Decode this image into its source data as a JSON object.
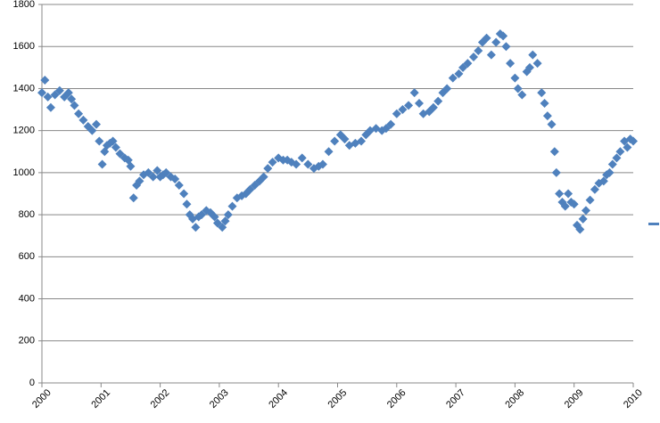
{
  "chart_data": {
    "type": "scatter",
    "x": [
      2000.0,
      2000.05,
      2000.1,
      2000.15,
      2000.22,
      2000.3,
      2000.38,
      2000.45,
      2000.5,
      2000.55,
      2000.62,
      2000.7,
      2000.78,
      2000.85,
      2000.92,
      2000.97,
      2001.02,
      2001.06,
      2001.1,
      2001.15,
      2001.2,
      2001.25,
      2001.32,
      2001.4,
      2001.46,
      2001.5,
      2001.55,
      2001.6,
      2001.65,
      2001.72,
      2001.8,
      2001.88,
      2001.95,
      2002.0,
      2002.05,
      2002.1,
      2002.18,
      2002.25,
      2002.32,
      2002.4,
      2002.45,
      2002.5,
      2002.55,
      2002.6,
      2002.65,
      2002.7,
      2002.78,
      2002.85,
      2002.92,
      2002.97,
      2003.05,
      2003.1,
      2003.15,
      2003.22,
      2003.3,
      2003.38,
      2003.45,
      2003.52,
      2003.6,
      2003.68,
      2003.75,
      2003.82,
      2003.9,
      2004.0,
      2004.08,
      2004.15,
      2004.22,
      2004.3,
      2004.4,
      2004.5,
      2004.6,
      2004.68,
      2004.75,
      2004.85,
      2004.95,
      2005.05,
      2005.12,
      2005.2,
      2005.3,
      2005.4,
      2005.48,
      2005.55,
      2005.65,
      2005.75,
      2005.82,
      2005.9,
      2006.0,
      2006.1,
      2006.2,
      2006.3,
      2006.38,
      2006.45,
      2006.55,
      2006.62,
      2006.7,
      2006.78,
      2006.85,
      2006.95,
      2007.05,
      2007.12,
      2007.2,
      2007.3,
      2007.38,
      2007.45,
      2007.52,
      2007.6,
      2007.68,
      2007.75,
      2007.8,
      2007.85,
      2007.92,
      2008.0,
      2008.05,
      2008.12,
      2008.2,
      2008.25,
      2008.3,
      2008.38,
      2008.45,
      2008.5,
      2008.55,
      2008.62,
      2008.67,
      2008.7,
      2008.75,
      2008.8,
      2008.85,
      2008.9,
      2008.95,
      2009.0,
      2009.05,
      2009.1,
      2009.15,
      2009.2,
      2009.27,
      2009.35,
      2009.42,
      2009.5,
      2009.55,
      2009.6,
      2009.65,
      2009.72,
      2009.78,
      2009.85,
      2009.9,
      2009.95,
      2010.0
    ],
    "values": [
      1380,
      1440,
      1360,
      1310,
      1370,
      1390,
      1360,
      1380,
      1350,
      1320,
      1280,
      1250,
      1220,
      1200,
      1230,
      1150,
      1040,
      1100,
      1130,
      1140,
      1150,
      1120,
      1090,
      1070,
      1060,
      1030,
      880,
      940,
      960,
      990,
      1000,
      980,
      1010,
      980,
      990,
      1000,
      980,
      970,
      940,
      900,
      850,
      800,
      780,
      740,
      790,
      800,
      820,
      810,
      790,
      760,
      740,
      770,
      800,
      840,
      880,
      890,
      900,
      920,
      940,
      960,
      980,
      1020,
      1050,
      1070,
      1060,
      1060,
      1050,
      1040,
      1070,
      1040,
      1020,
      1030,
      1040,
      1100,
      1150,
      1180,
      1160,
      1130,
      1140,
      1150,
      1180,
      1200,
      1210,
      1200,
      1210,
      1230,
      1280,
      1300,
      1320,
      1380,
      1330,
      1280,
      1290,
      1310,
      1340,
      1380,
      1400,
      1450,
      1470,
      1500,
      1520,
      1550,
      1580,
      1620,
      1640,
      1560,
      1620,
      1660,
      1650,
      1600,
      1520,
      1450,
      1400,
      1370,
      1480,
      1500,
      1560,
      1520,
      1380,
      1330,
      1270,
      1230,
      1100,
      1000,
      900,
      860,
      840,
      900,
      860,
      850,
      750,
      730,
      780,
      820,
      870,
      920,
      950,
      960,
      990,
      1000,
      1040,
      1070,
      1100,
      1150,
      1120,
      1160,
      1150
    ],
    "color": "#4f81bd",
    "xlim": [
      2000,
      2010
    ],
    "xticks": [
      2000,
      2001,
      2002,
      2003,
      2004,
      2005,
      2006,
      2007,
      2008,
      2009,
      2010
    ],
    "ylim": [
      0,
      1800
    ],
    "yticks": [
      0,
      200,
      400,
      600,
      800,
      1000,
      1200,
      1400,
      1600,
      1800
    ],
    "grid": true
  }
}
